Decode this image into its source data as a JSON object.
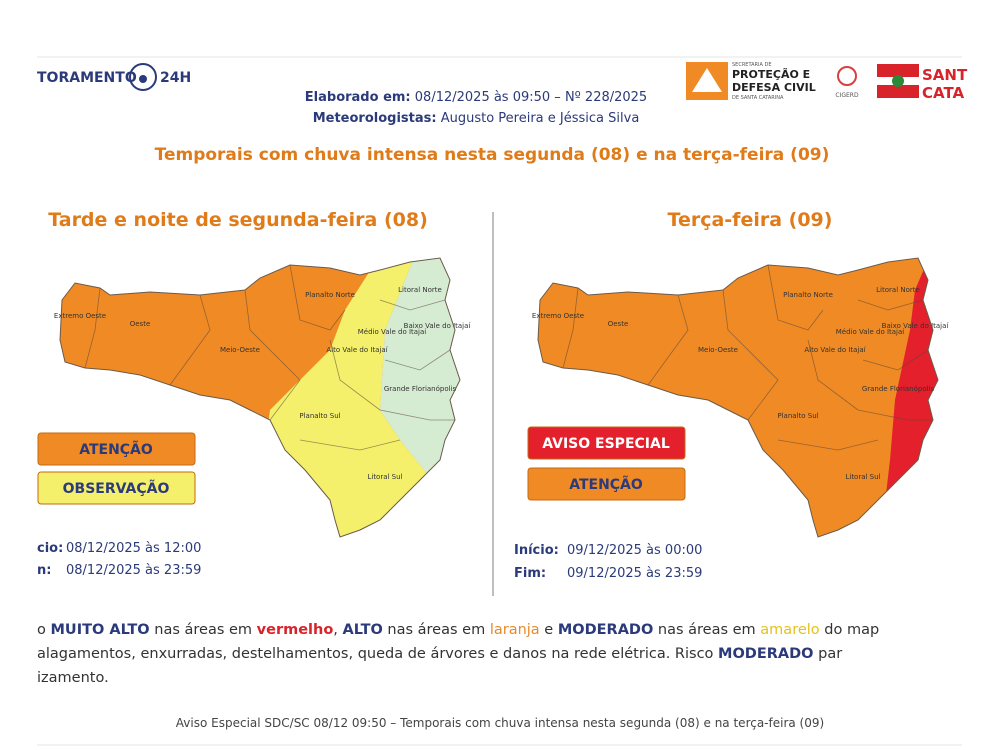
{
  "header": {
    "logo_text": "TORAMENTO",
    "logo_suffix": "24H",
    "elaborated_label": "Elaborado em:",
    "elaborated_value": "08/12/2025 às 09:50 – Nº 228/2025",
    "meteorologists_label": "Meteorologistas:",
    "meteorologists_value": "Augusto Pereira e Jéssica Silva",
    "agency_lines": [
      "SECRETARIA DE",
      "PROTEÇÃO E",
      "DEFESA CIVIL",
      "DE SANTA CATARINA"
    ],
    "cigerd": "CIGERD",
    "state_lines": [
      "SANT",
      "CATA"
    ]
  },
  "headline": "Temporais com chuva intensa nesta segunda (08) e na terça-feira (09)",
  "map_regions": [
    "Extremo Oeste",
    "Oeste",
    "Meio-Oeste",
    "Planalto Norte",
    "Alto Vale do Itajaí",
    "Médio Vale do Itajaí",
    "Litoral Norte",
    "Baixo Vale do Itajaí",
    "Grande Florianópolis",
    "Planalto Sul",
    "Litoral Sul"
  ],
  "panels": [
    {
      "title": "Tarde e noite de segunda-feira (08)",
      "legend": [
        {
          "label": "ATENÇÃO",
          "color": "#f08a24"
        },
        {
          "label": "OBSERVAÇÃO",
          "color": "#f4f06c"
        }
      ],
      "start_label": "cio:",
      "start_value": "08/12/2025 às 12:00",
      "end_label": "n:",
      "end_value": "08/12/2025 às 23:59"
    },
    {
      "title": "Terça-feira (09)",
      "legend": [
        {
          "label": "AVISO ESPECIAL",
          "color": "#e3202b"
        },
        {
          "label": "ATENÇÃO",
          "color": "#f08a24"
        }
      ],
      "start_label": "Início:",
      "start_value": "09/12/2025 às 00:00",
      "end_label": "Fim:",
      "end_value": "09/12/2025 às 23:59"
    }
  ],
  "notice": [
    [
      {
        "text": "o "
      },
      {
        "text": "MUITO ALTO",
        "color": "#2b3a7a",
        "bold": true
      },
      {
        "text": " nas áreas em "
      },
      {
        "text": "vermelho",
        "color": "#d8232a",
        "bold": true
      },
      {
        "text": ", "
      },
      {
        "text": "ALTO",
        "color": "#2b3a7a",
        "bold": true
      },
      {
        "text": " nas áreas em "
      },
      {
        "text": "laranja",
        "color": "#e88a2a"
      },
      {
        "text": " e "
      },
      {
        "text": "MODERADO",
        "color": "#2b3a7a",
        "bold": true
      },
      {
        "text": " nas áreas em "
      },
      {
        "text": "amarelo",
        "color": "#e3c21a"
      },
      {
        "text": " do map"
      }
    ],
    [
      {
        "text": "alagamentos, enxurradas, destelhamentos, queda de árvores e danos na rede elétrica. Risco "
      },
      {
        "text": "MODERADO",
        "color": "#2b3a7a",
        "bold": true
      },
      {
        "text": " par"
      }
    ],
    [
      {
        "text": "izamento."
      }
    ]
  ],
  "caption": "Aviso Especial SDC/SC 08/12 09:50 – Temporais com chuva intensa nesta segunda (08) e na terça-feira (09)"
}
